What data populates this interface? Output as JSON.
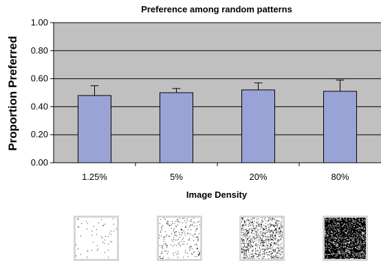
{
  "chart_data": {
    "type": "bar",
    "title": "Preference among random patterns",
    "xlabel": "Image Density",
    "ylabel": "Proportion Preferred",
    "categories": [
      "1.25%",
      "5%",
      "20%",
      "80%"
    ],
    "values": [
      0.48,
      0.5,
      0.52,
      0.51
    ],
    "error_bars": [
      0.07,
      0.03,
      0.05,
      0.08
    ],
    "ylim": [
      0,
      1
    ],
    "yticks": [
      "0.00",
      "0.20",
      "0.40",
      "0.60",
      "0.80",
      "1.00"
    ],
    "grid": true,
    "legend": "none",
    "colors": {
      "bar": "#9aa3d6",
      "plot_background": "#c0c0c0",
      "gridline": "#000000"
    }
  },
  "thumbnails": [
    {
      "label": "1.25%",
      "density": 0.0125,
      "icon": "sparse-dot-pattern"
    },
    {
      "label": "5%",
      "density": 0.05,
      "icon": "light-dot-pattern"
    },
    {
      "label": "20%",
      "density": 0.2,
      "icon": "medium-dot-pattern"
    },
    {
      "label": "80%",
      "density": 0.8,
      "icon": "dense-dot-pattern"
    }
  ]
}
